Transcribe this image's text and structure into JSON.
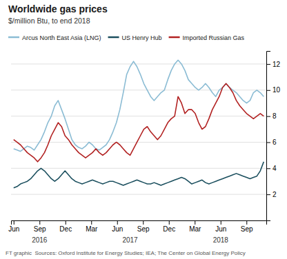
{
  "chart_data": {
    "type": "line",
    "title": "Worldwide gas prices",
    "subtitle": "$/million Btu, to end 2018",
    "footer": "FT graphic  Sources: Oxford Institute for Energy Studies; IEA; The Center on Global Energy Policy",
    "x": [
      0,
      0.3973,
      0.7945,
      1.1918,
      1.589,
      1.9863,
      2.3836,
      2.7808,
      3.1781,
      3.5753,
      3.9726,
      4.3699,
      4.7671,
      5.1644,
      5.5616,
      5.9589,
      6.3562,
      6.7534,
      7.1507,
      7.5479,
      7.9452,
      8.3425,
      8.7397,
      9.137,
      9.5342,
      9.9315,
      10.3288,
      10.726,
      11.1233,
      11.5205,
      11.9178,
      12.3151,
      12.7123,
      13.1096,
      13.5068,
      13.9041,
      14.3014,
      14.6986,
      15.0959,
      15.4932,
      15.8904,
      16.2877,
      16.6849,
      17.0822,
      17.4795,
      17.8767,
      18.274,
      18.6712,
      19.0685,
      19.4658,
      19.863,
      20.2603,
      20.6575,
      21.0548,
      21.4521,
      21.8493,
      22.2466,
      22.6438,
      23.0411,
      23.4384,
      23.8356,
      24.2329,
      24.6301,
      25.0274,
      25.4247,
      25.8219,
      26.2192,
      26.6164,
      27.0137,
      27.411,
      27.8082,
      28.2055,
      28.6027,
      29
    ],
    "series": [
      {
        "name": "Arcus North East Asia (LNG)",
        "color": "#8bbcd4",
        "values": [
          5.5,
          5.4,
          5.3,
          5.5,
          5.7,
          5.6,
          5.4,
          5.8,
          6.2,
          6.8,
          7.5,
          8.0,
          8.8,
          9.2,
          8.5,
          7.8,
          7.0,
          6.2,
          5.8,
          5.6,
          5.5,
          5.7,
          6.0,
          5.8,
          5.5,
          5.4,
          5.6,
          5.8,
          6.2,
          6.8,
          7.5,
          8.5,
          9.8,
          11.2,
          11.8,
          12.2,
          11.8,
          11.2,
          10.5,
          10.0,
          9.5,
          9.2,
          9.5,
          9.8,
          10.0,
          10.8,
          11.5,
          12.0,
          12.3,
          12.0,
          11.5,
          10.8,
          10.5,
          10.2,
          10.0,
          10.2,
          10.5,
          10.2,
          9.8,
          9.5,
          10.0,
          10.2,
          10.5,
          10.2,
          10.0,
          9.8,
          9.5,
          9.2,
          9.0,
          9.2,
          9.8,
          10.0,
          9.8,
          9.5
        ]
      },
      {
        "name": "US Henry Hub",
        "color": "#1b4f5e",
        "values": [
          2.5,
          2.6,
          2.8,
          2.9,
          3.0,
          3.2,
          3.5,
          3.8,
          4.0,
          3.8,
          3.5,
          3.2,
          3.0,
          3.2,
          3.5,
          3.8,
          3.5,
          3.2,
          3.0,
          2.9,
          2.8,
          2.9,
          3.0,
          3.1,
          3.0,
          2.9,
          2.8,
          2.9,
          3.0,
          3.0,
          2.9,
          2.8,
          2.7,
          2.8,
          2.9,
          3.0,
          3.1,
          3.0,
          2.9,
          2.8,
          2.8,
          2.9,
          2.8,
          2.7,
          2.8,
          2.9,
          3.0,
          3.1,
          3.2,
          3.3,
          3.2,
          3.0,
          2.8,
          2.9,
          3.0,
          3.1,
          2.9,
          2.8,
          2.9,
          3.0,
          3.1,
          3.2,
          3.3,
          3.4,
          3.5,
          3.6,
          3.5,
          3.4,
          3.3,
          3.2,
          3.3,
          3.4,
          3.8,
          4.5
        ]
      },
      {
        "name": "Imported Russian Gas",
        "color": "#b22222",
        "values": [
          6.2,
          6.0,
          5.8,
          5.5,
          5.2,
          5.0,
          4.8,
          4.5,
          4.8,
          5.2,
          5.8,
          6.5,
          7.0,
          7.5,
          7.2,
          6.5,
          6.2,
          5.8,
          5.5,
          5.2,
          5.0,
          4.8,
          5.0,
          5.2,
          5.5,
          5.2,
          5.0,
          5.2,
          5.5,
          5.8,
          6.0,
          5.8,
          5.5,
          5.2,
          5.0,
          5.5,
          6.0,
          6.5,
          7.0,
          7.2,
          6.8,
          6.5,
          6.2,
          6.5,
          7.0,
          7.5,
          7.8,
          8.0,
          9.5,
          9.0,
          8.2,
          8.5,
          8.5,
          8.2,
          7.5,
          7.0,
          7.2,
          7.8,
          8.5,
          9.0,
          9.5,
          10.2,
          10.5,
          10.2,
          9.8,
          9.2,
          8.8,
          8.5,
          8.2,
          8.0,
          7.8,
          8.0,
          8.2,
          8.0
        ]
      }
    ],
    "xlim": [
      -0.3,
      29.3
    ],
    "xticks": [
      {
        "value": 0,
        "label": "Jun"
      },
      {
        "value": 3,
        "label": "Sep"
      },
      {
        "value": 6,
        "label": "Dec"
      },
      {
        "value": 9,
        "label": "Mar"
      },
      {
        "value": 12,
        "label": "Jun"
      },
      {
        "value": 15,
        "label": "Sep"
      },
      {
        "value": 18,
        "label": "Dec"
      },
      {
        "value": 21,
        "label": "Mar"
      },
      {
        "value": 24,
        "label": "Jun"
      },
      {
        "value": 27,
        "label": "Sep"
      }
    ],
    "ylim": [
      0,
      13
    ],
    "yticks": [
      2,
      4,
      6,
      8,
      10,
      12
    ],
    "annotations": [
      {
        "text": "2016",
        "x": 3
      },
      {
        "text": "2017",
        "x": 13.5
      },
      {
        "text": "2018",
        "x": 24
      }
    ],
    "grid": "y",
    "legend": "top-left"
  }
}
